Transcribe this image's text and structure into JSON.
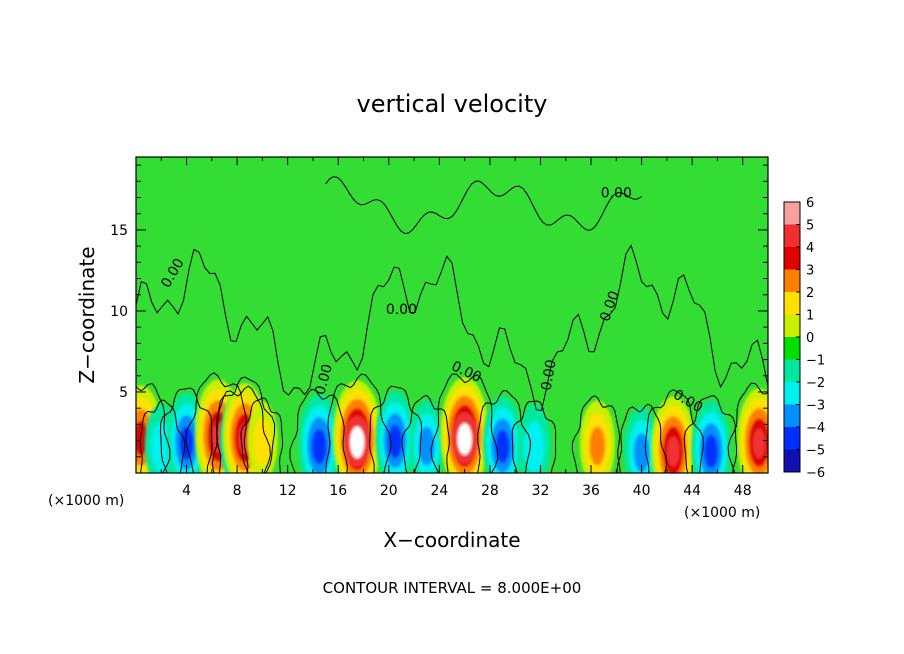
{
  "chart_data": {
    "type": "heatmap",
    "title": "vertical velocity",
    "xlabel": "X−coordinate",
    "ylabel": "Z−coordinate",
    "x_unit_left": "(×1000 m)",
    "x_unit_right": "(×1000 m)",
    "xlim": [
      0,
      50
    ],
    "ylim": [
      0,
      19.5
    ],
    "x_ticks": [
      4,
      8,
      12,
      16,
      20,
      24,
      28,
      32,
      36,
      40,
      44,
      48
    ],
    "x_tick_labels": [
      "4",
      "8",
      "12",
      "16",
      "20",
      "24",
      "28",
      "32",
      "36",
      "40",
      "44",
      "48"
    ],
    "y_ticks": [
      5,
      10,
      15
    ],
    "y_tick_labels": [
      "5",
      "10",
      "15"
    ],
    "colorbar": {
      "ticks": [
        6,
        5,
        4,
        3,
        2,
        1,
        0,
        -1,
        -2,
        -3,
        -4,
        -5,
        -6
      ],
      "labels": [
        "6",
        "5",
        "4",
        "3",
        "2",
        "1",
        "0",
        "−1",
        "−2",
        "−3",
        "−4",
        "−5",
        "−6"
      ],
      "colors": [
        "#f7a0a0",
        "#f03030",
        "#e00000",
        "#ff8000",
        "#ffe000",
        "#c8f000",
        "#00e000",
        "#00e8a0",
        "#00f0f0",
        "#0090ff",
        "#0030ff",
        "#1010b0",
        "#8020c0"
      ]
    },
    "background_color": "#33dd33",
    "contour_level_label": "0.00",
    "contour_label_count": 8,
    "footer": "CONTOUR INTERVAL = 8.000E+00",
    "features": [
      {
        "x": 0.4,
        "z": 2.3,
        "value": 4.5
      },
      {
        "x": 2.0,
        "z": 1.7,
        "value": -2.5
      },
      {
        "x": 4.0,
        "z": 2.0,
        "value": -4
      },
      {
        "x": 6.5,
        "z": 2.4,
        "value": 5.5
      },
      {
        "x": 8.3,
        "z": 2.0,
        "value": -4.5
      },
      {
        "x": 8.6,
        "z": 2.3,
        "value": 5
      },
      {
        "x": 10.0,
        "z": 2.0,
        "value": 2
      },
      {
        "x": 14.5,
        "z": 1.8,
        "value": -4.5
      },
      {
        "x": 17.5,
        "z": 2.2,
        "value": 6
      },
      {
        "x": 20.5,
        "z": 2.1,
        "value": -4
      },
      {
        "x": 23.0,
        "z": 1.8,
        "value": -3
      },
      {
        "x": 26.0,
        "z": 2.4,
        "value": 6
      },
      {
        "x": 29.0,
        "z": 1.8,
        "value": -4
      },
      {
        "x": 31.5,
        "z": 1.7,
        "value": -2.5
      },
      {
        "x": 36.5,
        "z": 1.8,
        "value": 3
      },
      {
        "x": 40.0,
        "z": 1.4,
        "value": -3
      },
      {
        "x": 42.5,
        "z": 1.5,
        "value": 5
      },
      {
        "x": 45.5,
        "z": 1.5,
        "value": -4
      },
      {
        "x": 49.3,
        "z": 2.0,
        "value": 5
      }
    ]
  }
}
